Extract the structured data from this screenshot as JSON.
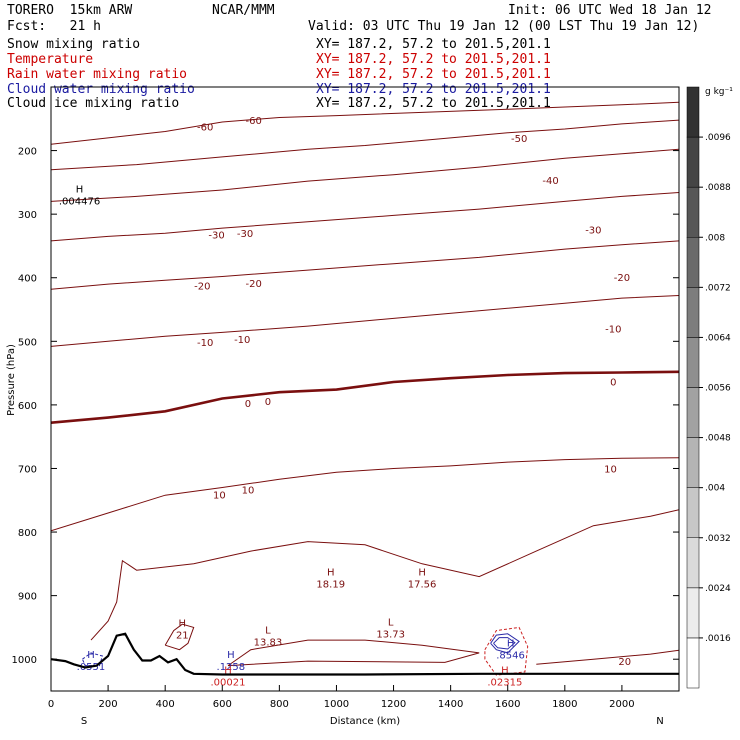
{
  "header": {
    "model": "TORERO  15km ARW",
    "center": "NCAR/MMM",
    "init": "Init: 06 UTC Wed 18 Jan 12",
    "fcst": "Fcst:   21 h",
    "valid": "Valid: 03 UTC Thu 19 Jan 12 (00 LST Thu 19 Jan 12)"
  },
  "legend": [
    {
      "label": "Snow mixing ratio",
      "xy": "XY= 187.2, 57.2 to 201.5,201.1",
      "color": "#000000"
    },
    {
      "label": "Temperature",
      "xy": "XY= 187.2, 57.2 to 201.5,201.1",
      "color": "#cc0000"
    },
    {
      "label": "Rain water mixing ratio",
      "xy": "XY= 187.2, 57.2 to 201.5,201.1",
      "color": "#cc0000"
    },
    {
      "label": "Cloud water mixing ratio",
      "xy": "XY= 187.2, 57.2 to 201.5,201.1",
      "color": "#1a1aa0"
    },
    {
      "label": "Cloud ice mixing ratio",
      "xy": "XY= 187.2, 57.2 to 201.5,201.1",
      "color": "#000000"
    }
  ],
  "colors": {
    "temperature": "#7a0f0f",
    "cloud_water": "#2a2aa8",
    "rain": "#cc2222",
    "terrain": "#000000"
  },
  "chart_data": {
    "type": "contour-cross-section",
    "xlabel": "Distance (km)",
    "ylabel": "Pressure (hPa)",
    "xlim": [
      0,
      2200
    ],
    "ylim": [
      1050,
      100
    ],
    "x_ticks": [
      0,
      200,
      400,
      600,
      800,
      1000,
      1200,
      1400,
      1600,
      1800,
      2000
    ],
    "y_ticks": [
      200,
      300,
      400,
      500,
      600,
      700,
      800,
      900,
      1000
    ],
    "end_labels": {
      "left": "S",
      "right": "N"
    },
    "colorbar": {
      "unit": "g kg⁻¹",
      "levels": [
        0.0016,
        0.0024,
        0.0032,
        0.004,
        0.0048,
        0.0056,
        0.0064,
        0.0072,
        0.008,
        0.0088,
        0.0096
      ],
      "tick_labels": [
        ".0016",
        ".0024",
        ".0032",
        ".004",
        ".0048",
        ".0056",
        ".0064",
        ".0072",
        ".008",
        ".0088",
        ".0096"
      ]
    },
    "temperature_contours": [
      {
        "value": -60,
        "points": [
          [
            0,
            190
          ],
          [
            200,
            180
          ],
          [
            400,
            170
          ],
          [
            600,
            155
          ],
          [
            800,
            148
          ],
          [
            1000,
            145
          ],
          [
            1300,
            140
          ],
          [
            1600,
            135
          ],
          [
            2000,
            128
          ],
          [
            2200,
            124
          ]
        ]
      },
      {
        "value": -50,
        "points": [
          [
            0,
            230
          ],
          [
            300,
            222
          ],
          [
            600,
            210
          ],
          [
            900,
            198
          ],
          [
            1100,
            192
          ],
          [
            1400,
            180
          ],
          [
            1600,
            172
          ],
          [
            1800,
            166
          ],
          [
            2000,
            158
          ],
          [
            2200,
            152
          ]
        ]
      },
      {
        "value": -40,
        "points": [
          [
            0,
            280
          ],
          [
            300,
            272
          ],
          [
            600,
            262
          ],
          [
            900,
            248
          ],
          [
            1200,
            238
          ],
          [
            1500,
            226
          ],
          [
            1800,
            212
          ],
          [
            2000,
            205
          ],
          [
            2200,
            198
          ]
        ]
      },
      {
        "value": -30,
        "points": [
          [
            0,
            342
          ],
          [
            200,
            335
          ],
          [
            400,
            330
          ],
          [
            600,
            322
          ],
          [
            900,
            312
          ],
          [
            1200,
            302
          ],
          [
            1500,
            292
          ],
          [
            1800,
            280
          ],
          [
            2000,
            272
          ],
          [
            2200,
            266
          ]
        ]
      },
      {
        "value": -20,
        "points": [
          [
            0,
            418
          ],
          [
            200,
            410
          ],
          [
            400,
            404
          ],
          [
            600,
            398
          ],
          [
            900,
            388
          ],
          [
            1200,
            378
          ],
          [
            1500,
            368
          ],
          [
            1800,
            355
          ],
          [
            2000,
            348
          ],
          [
            2200,
            342
          ]
        ]
      },
      {
        "value": -10,
        "points": [
          [
            0,
            508
          ],
          [
            200,
            500
          ],
          [
            400,
            492
          ],
          [
            600,
            486
          ],
          [
            900,
            476
          ],
          [
            1200,
            464
          ],
          [
            1500,
            452
          ],
          [
            1800,
            440
          ],
          [
            2000,
            432
          ],
          [
            2200,
            428
          ]
        ]
      },
      {
        "value": 0,
        "points": [
          [
            0,
            628
          ],
          [
            200,
            620
          ],
          [
            400,
            610
          ],
          [
            600,
            590
          ],
          [
            800,
            580
          ],
          [
            1000,
            576
          ],
          [
            1200,
            564
          ],
          [
            1400,
            558
          ],
          [
            1600,
            553
          ],
          [
            1800,
            550
          ],
          [
            2000,
            549
          ],
          [
            2200,
            548
          ]
        ]
      },
      {
        "value": 10,
        "points": [
          [
            0,
            798
          ],
          [
            200,
            770
          ],
          [
            400,
            742
          ],
          [
            600,
            730
          ],
          [
            800,
            717
          ],
          [
            1000,
            706
          ],
          [
            1200,
            700
          ],
          [
            1400,
            696
          ],
          [
            1600,
            690
          ],
          [
            1800,
            686
          ],
          [
            2000,
            684
          ],
          [
            2200,
            683
          ]
        ]
      },
      {
        "value": 20,
        "points": [
          [
            1700,
            1008
          ],
          [
            1900,
            1000
          ],
          [
            2100,
            992
          ],
          [
            2200,
            986
          ]
        ]
      }
    ],
    "temperature_labels": [
      {
        "text": "-60",
        "x": 540,
        "p": 162
      },
      {
        "text": "-60",
        "x": 710,
        "p": 152
      },
      {
        "text": "-50",
        "x": 1640,
        "p": 180
      },
      {
        "text": "-40",
        "x": 1750,
        "p": 246
      },
      {
        "text": "-30",
        "x": 580,
        "p": 332
      },
      {
        "text": "-30",
        "x": 680,
        "p": 330
      },
      {
        "text": "-30",
        "x": 1900,
        "p": 324
      },
      {
        "text": "-20",
        "x": 530,
        "p": 412
      },
      {
        "text": "-20",
        "x": 710,
        "p": 408
      },
      {
        "text": "-20",
        "x": 2000,
        "p": 399
      },
      {
        "text": "-10",
        "x": 540,
        "p": 501
      },
      {
        "text": "-10",
        "x": 670,
        "p": 496
      },
      {
        "text": "-10",
        "x": 1970,
        "p": 480
      },
      {
        "text": "0",
        "x": 690,
        "p": 597
      },
      {
        "text": "0",
        "x": 760,
        "p": 594
      },
      {
        "text": "0",
        "x": 1970,
        "p": 563
      },
      {
        "text": "10",
        "x": 590,
        "p": 741
      },
      {
        "text": "10",
        "x": 690,
        "p": 733
      },
      {
        "text": "10",
        "x": 1960,
        "p": 700
      },
      {
        "text": "20",
        "x": 2010,
        "p": 1003
      }
    ],
    "extrema": [
      {
        "type": "H",
        "value": ".004476",
        "x": 100,
        "p": 271,
        "color": "#000000"
      },
      {
        "type": "H",
        "value": "18.19",
        "x": 980,
        "p": 873,
        "color": "#7a0f0f"
      },
      {
        "type": "H",
        "value": "17.56",
        "x": 1300,
        "p": 873,
        "color": "#7a0f0f"
      },
      {
        "type": "H",
        "value": "21",
        "x": 460,
        "p": 953,
        "color": "#7a0f0f"
      },
      {
        "type": "L",
        "value": "13.83",
        "x": 760,
        "p": 964,
        "color": "#7a0f0f"
      },
      {
        "type": "L",
        "value": "13.73",
        "x": 1190,
        "p": 952,
        "color": "#7a0f0f"
      },
      {
        "type": "H",
        "value": ".0551",
        "x": 140,
        "p": 1003,
        "color": "#2a2aa8"
      },
      {
        "type": "H",
        "value": ".1258",
        "x": 630,
        "p": 1003,
        "color": "#2a2aa8"
      },
      {
        "type": "H",
        "value": ".00021",
        "x": 620,
        "p": 1027,
        "color": "#cc2222"
      },
      {
        "type": "H",
        "value": ".8546",
        "x": 1610,
        "p": 985,
        "color": "#2a2aa8"
      },
      {
        "type": "H",
        "value": ".02315",
        "x": 1590,
        "p": 1027,
        "color": "#cc2222"
      }
    ],
    "terrain": [
      [
        0,
        1000
      ],
      [
        50,
        1003
      ],
      [
        80,
        1008
      ],
      [
        120,
        1013
      ],
      [
        160,
        1010
      ],
      [
        200,
        995
      ],
      [
        230,
        963
      ],
      [
        260,
        960
      ],
      [
        290,
        985
      ],
      [
        320,
        1002
      ],
      [
        350,
        1002
      ],
      [
        380,
        995
      ],
      [
        410,
        1005
      ],
      [
        440,
        1000
      ],
      [
        470,
        1017
      ],
      [
        500,
        1023
      ],
      [
        600,
        1024
      ],
      [
        800,
        1024
      ],
      [
        1100,
        1024
      ],
      [
        1500,
        1023
      ],
      [
        1800,
        1023
      ],
      [
        2200,
        1023
      ]
    ]
  }
}
